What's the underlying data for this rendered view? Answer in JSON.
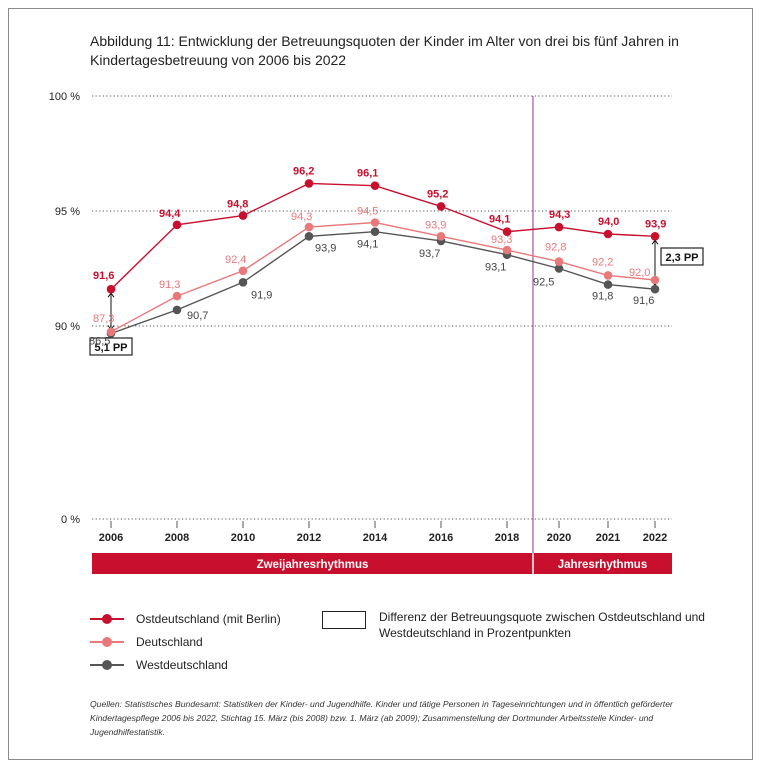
{
  "title": "Abbildung 11: Entwicklung der Betreuungsquoten der Kinder im Alter von drei bis fünf Jahren in Kindertagesbetreuung von 2006 bis 2022",
  "chart_data": {
    "type": "line",
    "title": "Abbildung 11: Entwicklung der Betreuungsquoten der Kinder im Alter von drei bis fünf Jahren in Kindertagesbetreuung von 2006 bis 2022",
    "x": [
      2006,
      2008,
      2010,
      2012,
      2014,
      2016,
      2018,
      2020,
      2021,
      2022
    ],
    "x_tick_labels": [
      "2006",
      "2008",
      "2010",
      "2012",
      "2014",
      "2016",
      "2018",
      "2020",
      "2021",
      "2022"
    ],
    "y_tick_labels": [
      "0 %",
      "90 %",
      "95 %",
      "100 %"
    ],
    "y_scale": "broken axis (0 to 90 compressed, 90 to 100 linear)",
    "ylim": [
      0,
      100
    ],
    "grid": "dotted horizontal lines at 90, 95, 100",
    "series": [
      {
        "name": "Ostdeutschland (mit Berlin)",
        "color": "#c8102e",
        "values": [
          91.6,
          94.4,
          94.8,
          96.2,
          96.1,
          95.2,
          94.1,
          94.3,
          94.0,
          93.9
        ],
        "labels": [
          "91,6",
          "94,4",
          "94,8",
          "96,2",
          "96,1",
          "95,2",
          "94,1",
          "94,3",
          "94,0",
          "93,9"
        ]
      },
      {
        "name": "Deutschland",
        "color": "#e8787a",
        "values": [
          87.3,
          91.3,
          92.4,
          94.3,
          94.5,
          93.9,
          93.3,
          92.8,
          92.2,
          92.0
        ],
        "labels": [
          "87,3",
          "91,3",
          "92,4",
          "94,3",
          "94,5",
          "93,9",
          "93,3",
          "92,8",
          "92,2",
          "92,0"
        ]
      },
      {
        "name": "Westdeutschland",
        "color": "#555555",
        "values": [
          86.5,
          90.7,
          91.9,
          93.9,
          94.1,
          93.7,
          93.1,
          92.5,
          91.8,
          91.6
        ],
        "labels": [
          "86,5",
          "90,7",
          "91,9",
          "93,9",
          "94,1",
          "93,7",
          "93,1",
          "92,5",
          "91,8",
          "91,6"
        ]
      }
    ],
    "differences": [
      {
        "x": 2006,
        "label": "5,1 PP"
      },
      {
        "x": 2022,
        "label": "2,3 PP"
      }
    ],
    "periods": [
      {
        "label": "Zweijahresrhythmus",
        "from": 2006,
        "to": 2019
      },
      {
        "label": "Jahresrhythmus",
        "from": 2019,
        "to": 2022
      }
    ],
    "legend_position": "bottom"
  },
  "legend": {
    "items": [
      {
        "label": "Ostdeutschland (mit Berlin)",
        "color": "#c8102e"
      },
      {
        "label": "Deutschland",
        "color": "#e8787a"
      },
      {
        "label": "Westdeutschland",
        "color": "#555555"
      }
    ],
    "diff_label": "Differenz der Betreuungsquote zwischen Ostdeutschland und Westdeutschland in Prozentpunkten"
  },
  "sources": "Quellen: Statistisches Bundesamt: Statistiken der Kinder- und Jugendhilfe. Kinder und tätige Personen in Tageseinrichtungen und in öffentlich geförderter Kindertagespflege 2006 bis 2022, Stichtag 15. März (bis 2008) bzw. 1. März (ab 2009); Zusammenstellung der Dortmunder Arbeitsstelle Kinder- und Jugendhilfestatistik."
}
